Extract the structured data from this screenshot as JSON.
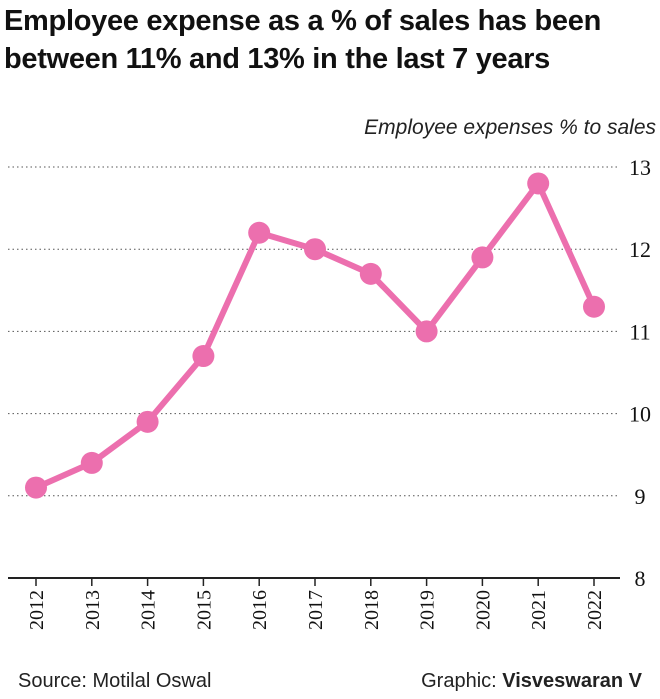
{
  "title": "Employee expense as a % of sales has been between 11% and 13% in the last 7 years",
  "unit_label": "Employee expenses % to sales",
  "footer": {
    "source": "Source: Motilal Oswal",
    "graphic_prefix": "Graphic: ",
    "graphic_author": "Visveswaran V"
  },
  "colors": {
    "line": "#ec6fae",
    "grid": "#555555",
    "axis": "#222222"
  },
  "chart_data": {
    "type": "line",
    "title": "Employee expense as a % of sales has been between 11% and 13% in the last 7 years",
    "ylabel": "Employee expenses % to sales",
    "xlabel": "",
    "categories": [
      "2012",
      "2013",
      "2014",
      "2015",
      "2016",
      "2017",
      "2018",
      "2019",
      "2020",
      "2021",
      "2022"
    ],
    "series": [
      {
        "values": [
          9.1,
          9.4,
          9.9,
          10.7,
          12.2,
          12.0,
          11.7,
          11.0,
          11.9,
          12.8,
          11.3
        ]
      }
    ],
    "ylim": [
      8,
      13
    ],
    "yticks": [
      "8",
      "9",
      "10",
      "11",
      "12",
      "13"
    ],
    "y_axis_position": "right",
    "grid": "horizontal dotted"
  }
}
